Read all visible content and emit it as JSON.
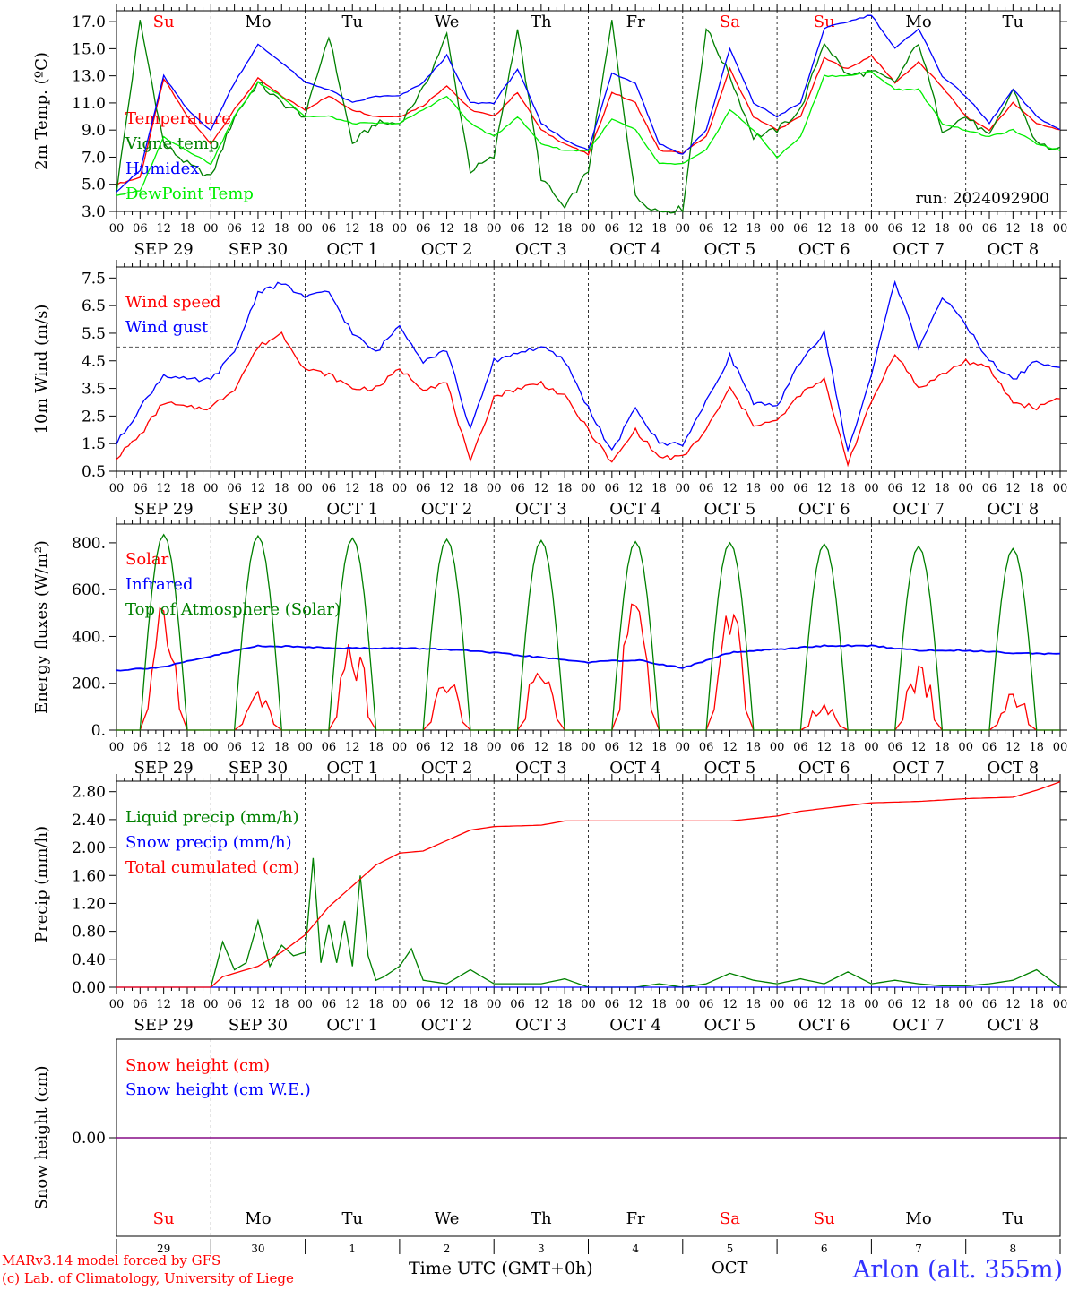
{
  "colors": {
    "red": "#ff0000",
    "green": "#008000",
    "blue": "#0000ff",
    "lightgreen": "#00ee00",
    "purple": "#800080",
    "black": "#000000"
  },
  "time_axis": {
    "hour_labels": [
      "00",
      "06",
      "12",
      "18"
    ],
    "end_label": "00",
    "date_labels": [
      "SEP 29",
      "SEP 30",
      "OCT  1",
      "OCT  2",
      "OCT  3",
      "OCT  4",
      "OCT  5",
      "OCT  6",
      "OCT  7",
      "OCT  8"
    ],
    "weekdays": [
      {
        "label": "Su",
        "color": "red"
      },
      {
        "label": "Mo",
        "color": "black"
      },
      {
        "label": "Tu",
        "color": "black"
      },
      {
        "label": "We",
        "color": "black"
      },
      {
        "label": "Th",
        "color": "black"
      },
      {
        "label": "Fr",
        "color": "black"
      },
      {
        "label": "Sa",
        "color": "red"
      },
      {
        "label": "Su",
        "color": "red"
      },
      {
        "label": "Mo",
        "color": "black"
      },
      {
        "label": "Tu",
        "color": "black"
      }
    ],
    "day_numbers": [
      "29",
      "30",
      "1",
      "2",
      "3",
      "4",
      "5",
      "6",
      "7",
      "8"
    ],
    "month_label": "OCT",
    "axis_title": "Time UTC (GMT+0h)"
  },
  "run_label": "run: 2024092900",
  "footer": {
    "model_line": "MARv3.14 model forced by GFS",
    "lab_line": "(c) Lab. of Climatology, University of Liege",
    "station": "Arlon (alt. 355m)"
  },
  "chart_data": [
    {
      "type": "line",
      "id": "temperature",
      "ylabel": "2m Temp. (ºC)",
      "ylim": [
        3.0,
        17.8
      ],
      "yticks": [
        "3.0",
        "5.0",
        "7.0",
        "9.0",
        "11.0",
        "13.0",
        "15.0",
        "17.0"
      ],
      "x_unit": "hours since SEP 29 00 UTC",
      "series": [
        {
          "name": "Temperature",
          "color": "red",
          "x": [
            0,
            6,
            12,
            18,
            24,
            30,
            36,
            42,
            48,
            54,
            60,
            66,
            72,
            78,
            84,
            90,
            96,
            102,
            108,
            114,
            120,
            126,
            132,
            138,
            144,
            150,
            156,
            162,
            168,
            174,
            180,
            186,
            192,
            198,
            204,
            210,
            216,
            222,
            228,
            234,
            240
          ],
          "values": [
            5.0,
            5.5,
            12.8,
            10.0,
            8.0,
            10.5,
            12.8,
            11.5,
            10.5,
            11.5,
            10.5,
            10.0,
            10.0,
            10.8,
            12.3,
            10.5,
            10.0,
            11.8,
            9.0,
            8.0,
            7.2,
            11.8,
            11.0,
            7.5,
            7.3,
            8.5,
            13.5,
            10.0,
            9.0,
            10.0,
            14.3,
            13.5,
            14.5,
            12.5,
            14.0,
            12.2,
            10.0,
            9.0,
            11.0,
            9.5,
            9.0
          ]
        },
        {
          "name": "Vigne temp",
          "color": "green",
          "x": [
            0,
            6,
            12,
            18,
            24,
            30,
            36,
            42,
            48,
            54,
            60,
            66,
            72,
            78,
            84,
            90,
            96,
            102,
            108,
            114,
            120,
            126,
            132,
            138,
            144,
            150,
            156,
            162,
            168,
            174,
            180,
            186,
            192,
            198,
            204,
            210,
            216,
            222,
            228,
            234,
            240
          ],
          "values": [
            4.5,
            17.0,
            8.0,
            6.5,
            5.5,
            10.0,
            12.5,
            11.0,
            10.0,
            16.0,
            8.0,
            9.5,
            9.5,
            12.0,
            16.0,
            6.0,
            7.0,
            16.5,
            5.5,
            3.2,
            6.0,
            17.0,
            4.0,
            3.0,
            3.2,
            16.5,
            13.0,
            8.5,
            9.0,
            10.5,
            15.5,
            13.0,
            13.3,
            12.5,
            15.5,
            9.0,
            10.0,
            8.5,
            12.0,
            8.0,
            7.5
          ]
        },
        {
          "name": "Humidex",
          "color": "blue",
          "x": [
            0,
            6,
            12,
            18,
            24,
            30,
            36,
            42,
            48,
            54,
            60,
            66,
            72,
            78,
            84,
            90,
            96,
            102,
            108,
            114,
            120,
            126,
            132,
            138,
            144,
            150,
            156,
            162,
            168,
            174,
            180,
            186,
            192,
            198,
            204,
            210,
            216,
            222,
            228,
            234,
            240
          ],
          "values": [
            4.5,
            6.0,
            13.0,
            10.5,
            9.0,
            12.5,
            15.3,
            14.0,
            12.5,
            12.0,
            11.0,
            11.5,
            11.5,
            12.5,
            14.5,
            11.0,
            11.0,
            13.5,
            9.5,
            8.3,
            7.5,
            13.2,
            12.5,
            8.0,
            7.2,
            9.0,
            15.0,
            11.0,
            10.0,
            11.0,
            16.5,
            17.0,
            17.5,
            15.0,
            16.5,
            13.0,
            11.5,
            9.5,
            12.0,
            10.0,
            9.0
          ]
        },
        {
          "name": "DewPoint Temp",
          "color": "lightgreen",
          "x": [
            0,
            6,
            12,
            18,
            24,
            30,
            36,
            42,
            48,
            54,
            60,
            66,
            72,
            78,
            84,
            90,
            96,
            102,
            108,
            114,
            120,
            126,
            132,
            138,
            144,
            150,
            156,
            162,
            168,
            174,
            180,
            186,
            192,
            198,
            204,
            210,
            216,
            222,
            228,
            234,
            240
          ],
          "values": [
            4.2,
            4.5,
            8.5,
            7.5,
            6.5,
            10.0,
            12.5,
            11.5,
            10.0,
            10.0,
            9.5,
            9.5,
            9.5,
            10.5,
            11.5,
            9.5,
            8.5,
            10.0,
            8.0,
            7.5,
            7.5,
            9.8,
            9.0,
            6.5,
            6.5,
            7.5,
            10.5,
            9.0,
            7.0,
            8.5,
            13.0,
            13.0,
            13.3,
            12.0,
            12.0,
            9.5,
            9.0,
            8.5,
            9.0,
            8.0,
            7.5
          ]
        }
      ]
    },
    {
      "type": "line",
      "id": "wind",
      "ylabel": "10m Wind (m/s)",
      "ylim": [
        0.5,
        7.9
      ],
      "yticks": [
        "0.5",
        "1.5",
        "2.5",
        "3.5",
        "4.5",
        "5.5",
        "6.5",
        "7.5"
      ],
      "reference_line": 5.0,
      "series": [
        {
          "name": "Wind speed",
          "color": "red",
          "x": [
            0,
            6,
            12,
            18,
            24,
            30,
            36,
            42,
            48,
            54,
            60,
            66,
            72,
            78,
            84,
            90,
            96,
            102,
            108,
            114,
            120,
            126,
            132,
            138,
            144,
            150,
            156,
            162,
            168,
            174,
            180,
            186,
            192,
            198,
            204,
            210,
            216,
            222,
            228,
            234,
            240
          ],
          "values": [
            1.0,
            1.8,
            3.0,
            2.8,
            2.8,
            3.5,
            5.0,
            5.5,
            4.2,
            4.0,
            3.5,
            3.5,
            4.2,
            3.5,
            3.7,
            0.8,
            3.2,
            3.5,
            3.7,
            3.2,
            2.0,
            0.8,
            2.0,
            1.0,
            1.0,
            2.0,
            3.5,
            2.2,
            2.3,
            3.3,
            3.8,
            0.8,
            3.0,
            4.8,
            3.5,
            4.0,
            4.5,
            4.2,
            3.0,
            2.8,
            3.2
          ]
        },
        {
          "name": "Wind gust",
          "color": "blue",
          "x": [
            0,
            6,
            12,
            18,
            24,
            30,
            36,
            42,
            48,
            54,
            60,
            66,
            72,
            78,
            84,
            90,
            96,
            102,
            108,
            114,
            120,
            126,
            132,
            138,
            144,
            150,
            156,
            162,
            168,
            174,
            180,
            186,
            192,
            198,
            204,
            210,
            216,
            222,
            228,
            234,
            240
          ],
          "values": [
            1.5,
            2.8,
            4.0,
            3.8,
            3.8,
            4.8,
            7.0,
            7.3,
            6.8,
            7.0,
            5.5,
            4.8,
            5.8,
            4.5,
            4.9,
            2.0,
            4.5,
            4.8,
            5.0,
            4.5,
            2.8,
            1.2,
            2.8,
            1.5,
            1.5,
            3.0,
            4.7,
            3.0,
            2.8,
            4.5,
            5.5,
            1.2,
            4.0,
            7.4,
            5.0,
            6.8,
            5.8,
            4.5,
            3.8,
            4.5,
            4.2
          ]
        }
      ]
    },
    {
      "type": "line",
      "id": "energy",
      "ylabel": "Energy fluxes (W/m²)",
      "ylim": [
        0,
        880
      ],
      "yticks": [
        "0.",
        "200.",
        "400.",
        "600.",
        "800."
      ],
      "series": [
        {
          "name": "Solar",
          "color": "red",
          "day_peaks": [
            610,
            170,
            380,
            230,
            310,
            570,
            580,
            120,
            290,
            160
          ]
        },
        {
          "name": "Infrared",
          "color": "blue",
          "x": [
            0,
            12,
            24,
            36,
            48,
            60,
            72,
            84,
            96,
            108,
            120,
            132,
            144,
            156,
            168,
            180,
            192,
            204,
            216,
            228,
            240
          ],
          "values": [
            255,
            270,
            315,
            360,
            355,
            350,
            350,
            345,
            330,
            310,
            290,
            300,
            265,
            330,
            345,
            360,
            360,
            340,
            340,
            330,
            325
          ]
        },
        {
          "name": "Top of Atmosphere (Solar)",
          "color": "green",
          "day_peaks": [
            835,
            830,
            820,
            815,
            810,
            805,
            800,
            795,
            785,
            775
          ]
        }
      ]
    },
    {
      "type": "line",
      "id": "precip",
      "ylabel": "Precip (mm/h)",
      "ylim": [
        0,
        2.95
      ],
      "yticks": [
        "0.00",
        "0.40",
        "0.80",
        "1.20",
        "1.60",
        "2.00",
        "2.40",
        "2.80"
      ],
      "series": [
        {
          "name": "Liquid precip (mm/h)",
          "color": "green",
          "x": [
            24,
            27,
            30,
            33,
            36,
            39,
            42,
            45,
            48,
            50,
            52,
            54,
            56,
            58,
            60,
            62,
            64,
            66,
            68,
            72,
            75,
            78,
            84,
            90,
            96,
            108,
            114,
            120,
            132,
            138,
            144,
            150,
            156,
            162,
            168,
            174,
            180,
            186,
            192,
            198,
            204,
            210,
            216,
            222,
            228,
            234,
            240
          ],
          "values": [
            0,
            0.65,
            0.25,
            0.35,
            0.95,
            0.3,
            0.6,
            0.45,
            0.5,
            1.85,
            0.35,
            0.9,
            0.35,
            0.95,
            0.3,
            1.6,
            0.45,
            0.1,
            0.15,
            0.3,
            0.55,
            0.1,
            0.05,
            0.25,
            0.05,
            0.05,
            0.12,
            0,
            0,
            0.05,
            0,
            0.05,
            0.2,
            0.1,
            0.05,
            0.12,
            0.05,
            0.22,
            0.05,
            0.1,
            0.05,
            0.02,
            0.02,
            0.05,
            0.1,
            0.25,
            0
          ]
        },
        {
          "name": "Snow precip (mm/h)",
          "color": "blue",
          "x": [
            0,
            240
          ],
          "values": [
            0,
            0
          ]
        },
        {
          "name": "Total cumulated (cm)",
          "color": "red",
          "x": [
            0,
            24,
            27,
            30,
            36,
            42,
            48,
            54,
            60,
            66,
            72,
            78,
            84,
            90,
            96,
            108,
            114,
            120,
            132,
            144,
            156,
            168,
            174,
            180,
            186,
            192,
            204,
            216,
            228,
            234,
            240
          ],
          "values": [
            0,
            0,
            0.15,
            0.2,
            0.3,
            0.5,
            0.75,
            1.15,
            1.45,
            1.75,
            1.92,
            1.95,
            2.1,
            2.25,
            2.3,
            2.32,
            2.38,
            2.38,
            2.38,
            2.38,
            2.38,
            2.45,
            2.52,
            2.56,
            2.6,
            2.64,
            2.66,
            2.7,
            2.72,
            2.82,
            2.94
          ]
        }
      ]
    },
    {
      "type": "line",
      "id": "snow",
      "ylabel": "Snow height (cm)",
      "ylim": [
        -1,
        1
      ],
      "yticks": [
        "0.00"
      ],
      "series": [
        {
          "name": "Snow height (cm)",
          "color": "red",
          "x": [
            0,
            240
          ],
          "values": [
            0,
            0
          ]
        },
        {
          "name": "Snow height (cm W.E.)",
          "color": "blue",
          "x": [
            0,
            240
          ],
          "values": [
            0,
            0
          ]
        }
      ]
    }
  ]
}
